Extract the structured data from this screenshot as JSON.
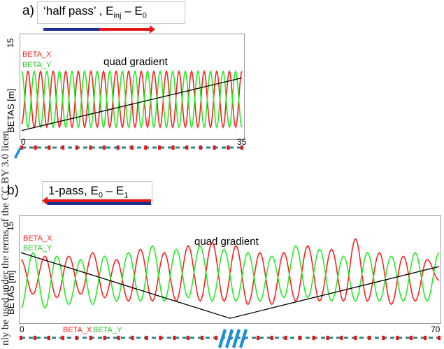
{
  "margin_text": "nly be used under the terms of the CC BY 3.0 licen",
  "panels": [
    {
      "letter": "a)",
      "title_prefix": "‘half pass’ , E",
      "title_sub1": "inj",
      "title_mid": " – E",
      "title_sub2": "0",
      "annotation": "quad gradient",
      "legend_x": "BETA_X",
      "legend_y": "BETA_Y",
      "ylabel": "BETAS [m]",
      "xticks": [
        "0",
        "35"
      ],
      "ytick_top": "15",
      "colors": {
        "beta_x": "#ff2020",
        "beta_y": "#22ee22",
        "gradient": "#000000"
      }
    },
    {
      "letter": "b)",
      "title_prefix": "1-pass, E",
      "title_sub1": "0",
      "title_mid": " – E",
      "title_sub2": "1",
      "annotation": "quad gradient",
      "legend_x": "BETA_X",
      "legend_y": "BETA_Y",
      "bottom_legend_x": "BETA_X",
      "bottom_legend_y": "BETA_Y",
      "ylabel": "BETAS [m]",
      "xticks": [
        "0",
        "70"
      ],
      "ytick_top": "15",
      "colors": {
        "beta_x": "#ff2020",
        "beta_y": "#22ee22",
        "gradient": "#000000"
      }
    }
  ],
  "chart_data": [
    {
      "type": "line",
      "xlim": [
        0,
        35
      ],
      "ylim": [
        0,
        15
      ],
      "xlabel": "",
      "ylabel": "BETAS [m]",
      "series": [
        {
          "name": "BETA_X",
          "x": [
            0,
            1,
            2,
            3,
            4,
            5,
            6,
            7,
            8,
            9,
            10,
            11,
            12,
            13,
            14,
            15,
            16,
            17,
            18,
            19,
            20,
            21,
            22,
            23,
            24,
            25,
            26,
            27,
            28,
            29,
            30,
            31,
            32,
            33,
            34,
            35
          ],
          "values": [
            2,
            10,
            1.5,
            10,
            1.5,
            10,
            1.5,
            10,
            1.5,
            10,
            1.5,
            10,
            1.5,
            10,
            1.5,
            10,
            1.5,
            10,
            1.5,
            10,
            1.5,
            10,
            1.5,
            10,
            1.5,
            10,
            1.5,
            10,
            1.5,
            10,
            1.5,
            10,
            1.5,
            10,
            1.5,
            10
          ]
        },
        {
          "name": "BETA_Y",
          "x": [
            0,
            1,
            2,
            3,
            4,
            5,
            6,
            7,
            8,
            9,
            10,
            11,
            12,
            13,
            14,
            15,
            16,
            17,
            18,
            19,
            20,
            21,
            22,
            23,
            24,
            25,
            26,
            27,
            28,
            29,
            30,
            31,
            32,
            33,
            34,
            35
          ],
          "values": [
            10,
            1.5,
            10,
            1.5,
            10,
            1.5,
            10,
            1.5,
            10,
            1.5,
            10,
            1.5,
            10,
            1.5,
            10,
            1.5,
            10,
            1.5,
            10,
            1.5,
            10,
            1.5,
            10,
            1.5,
            10,
            1.5,
            10,
            1.5,
            10,
            1.5,
            10,
            1.5,
            10,
            1.5,
            10,
            1.5
          ]
        },
        {
          "x": [
            0,
            35
          ],
          "values": [
            1,
            9
          ]
        }
      ]
    },
    {
      "type": "line",
      "xlim": [
        0,
        70
      ],
      "ylim": [
        0,
        15
      ],
      "xlabel": "",
      "ylabel": "BETAS [m]",
      "series": [
        {
          "name": "BETA_X",
          "x": [
            0,
            2,
            4,
            6,
            8,
            10,
            12,
            14,
            16,
            18,
            20,
            22,
            24,
            26,
            28,
            30,
            32,
            34,
            36,
            38,
            40,
            42,
            44,
            46,
            48,
            50,
            52,
            54,
            56,
            58,
            60,
            62,
            64,
            66,
            68,
            70
          ],
          "values": [
            9,
            4,
            9.5,
            3.5,
            9.5,
            4,
            10,
            3.5,
            9,
            3,
            10.5,
            3,
            10,
            3,
            11,
            3,
            11.5,
            3,
            11,
            2.5,
            10,
            2.5,
            10,
            3,
            11,
            3,
            10.5,
            3,
            12,
            3,
            10,
            2.5,
            9.5,
            3,
            9,
            6
          ]
        },
        {
          "name": "BETA_Y",
          "x": [
            0,
            2,
            4,
            6,
            8,
            10,
            12,
            14,
            16,
            18,
            20,
            22,
            24,
            26,
            28,
            30,
            32,
            34,
            36,
            38,
            40,
            42,
            44,
            46,
            48,
            50,
            52,
            54,
            56,
            58,
            60,
            62,
            64,
            66,
            68,
            70
          ],
          "values": [
            2,
            10,
            2,
            9.5,
            2.5,
            9,
            2.5,
            9.5,
            3,
            10,
            3,
            11,
            3,
            10.5,
            3.5,
            11,
            3,
            10.5,
            3,
            10,
            3,
            9.5,
            3.5,
            11,
            3.5,
            10.5,
            3,
            9.5,
            3,
            10,
            3,
            9.5,
            3,
            10,
            3,
            10
          ]
        },
        {
          "x": [
            0,
            35,
            70
          ],
          "values": [
            10,
            0.5,
            8
          ]
        }
      ]
    }
  ]
}
